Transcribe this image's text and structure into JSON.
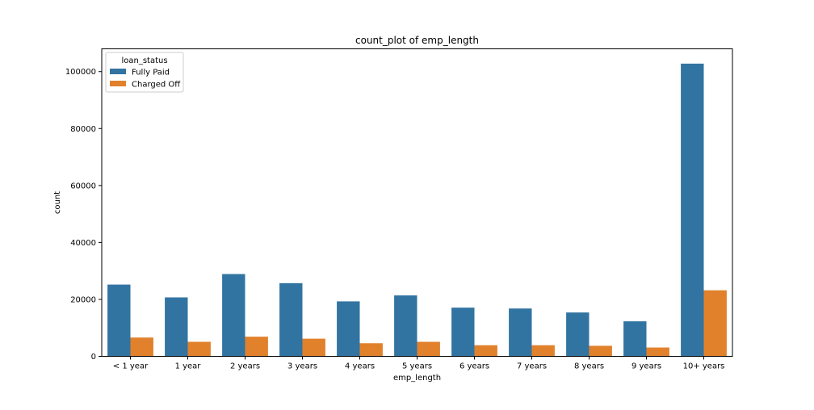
{
  "chart_data": {
    "type": "bar",
    "title": "count_plot of emp_length",
    "xlabel": "emp_length",
    "ylabel": "count",
    "categories": [
      "< 1 year",
      "1 year",
      "2 years",
      "3 years",
      "4 years",
      "5 years",
      "6 years",
      "7 years",
      "8 years",
      "9 years",
      "10+ years"
    ],
    "series": [
      {
        "name": "Fully Paid",
        "color": "#3274a1",
        "values": [
          25200,
          20700,
          28900,
          25700,
          19300,
          21400,
          17100,
          16800,
          15400,
          12300,
          102800
        ]
      },
      {
        "name": "Charged Off",
        "color": "#e1812c",
        "values": [
          6600,
          5100,
          6900,
          6200,
          4600,
          5100,
          3900,
          3900,
          3700,
          3100,
          23200
        ]
      }
    ],
    "ylim": [
      0,
      108000
    ],
    "yticks": [
      0,
      20000,
      40000,
      60000,
      80000,
      100000
    ],
    "legend": {
      "title": "loan_status",
      "placement": "top-left"
    },
    "grid": false
  }
}
